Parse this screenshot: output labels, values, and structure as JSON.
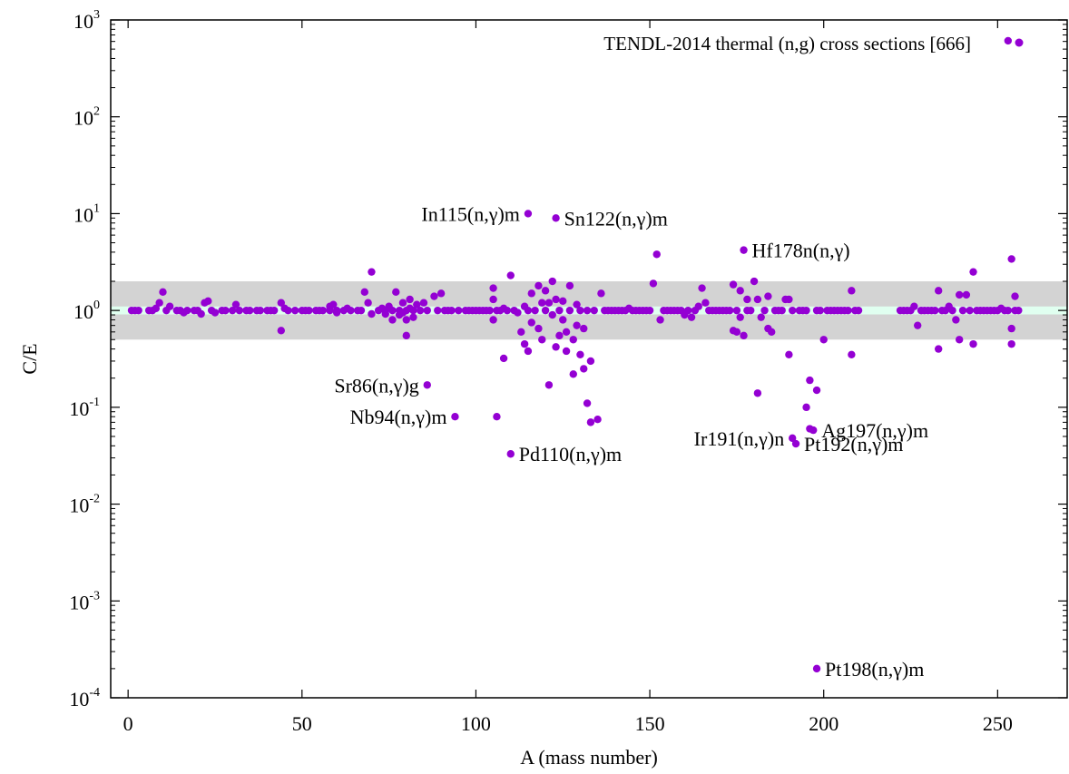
{
  "chart_data": {
    "type": "scatter",
    "title": "",
    "xlabel": "A (mass number)",
    "ylabel": "C/E",
    "xlim": [
      -5,
      270
    ],
    "ylim": [
      0.0001,
      1000
    ],
    "yscale": "log",
    "xticks": [
      0,
      50,
      100,
      150,
      200,
      250
    ],
    "yticks": [
      {
        "base": "10",
        "exp": "-4",
        "value": 0.0001
      },
      {
        "base": "10",
        "exp": "-3",
        "value": 0.001
      },
      {
        "base": "10",
        "exp": "-2",
        "value": 0.01
      },
      {
        "base": "10",
        "exp": "-1",
        "value": 0.1
      },
      {
        "base": "10",
        "exp": "0",
        "value": 1
      },
      {
        "base": "10",
        "exp": "1",
        "value": 10
      },
      {
        "base": "10",
        "exp": "2",
        "value": 100
      },
      {
        "base": "10",
        "exp": "3",
        "value": 1000
      }
    ],
    "bands": [
      {
        "ymin": 0.5,
        "ymax": 2.0,
        "color": "#d3d3d3"
      },
      {
        "ymin": 0.91,
        "ymax": 1.1,
        "color": "#e0fff0"
      }
    ],
    "grid": false,
    "legend_position": "top-right",
    "series": [
      {
        "name": "TENDL-2014 thermal (n,g) cross sections [666]",
        "color": "#9400d3",
        "points": [
          [
            1,
            1.0
          ],
          [
            2,
            1.0
          ],
          [
            3,
            1.0
          ],
          [
            6,
            1.0
          ],
          [
            7,
            1.0
          ],
          [
            8,
            1.05
          ],
          [
            9,
            1.2
          ],
          [
            10,
            1.55
          ],
          [
            11,
            1.0
          ],
          [
            12,
            1.1
          ],
          [
            14,
            1.0
          ],
          [
            15,
            1.0
          ],
          [
            16,
            0.95
          ],
          [
            17,
            1.0
          ],
          [
            19,
            1.0
          ],
          [
            20,
            1.0
          ],
          [
            21,
            0.92
          ],
          [
            22,
            1.2
          ],
          [
            23,
            1.25
          ],
          [
            24,
            1.0
          ],
          [
            25,
            0.95
          ],
          [
            27,
            1.0
          ],
          [
            28,
            1.0
          ],
          [
            30,
            1.0
          ],
          [
            31,
            1.15
          ],
          [
            32,
            1.0
          ],
          [
            34,
            1.0
          ],
          [
            35,
            1.0
          ],
          [
            37,
            1.0
          ],
          [
            38,
            1.0
          ],
          [
            40,
            1.0
          ],
          [
            41,
            1.0
          ],
          [
            42,
            1.0
          ],
          [
            44,
            1.2
          ],
          [
            44,
            0.62
          ],
          [
            45,
            1.05
          ],
          [
            46,
            1.0
          ],
          [
            48,
            1.0
          ],
          [
            50,
            1.0
          ],
          [
            51,
            1.0
          ],
          [
            52,
            1.0
          ],
          [
            54,
            1.0
          ],
          [
            55,
            1.0
          ],
          [
            56,
            1.0
          ],
          [
            58,
            1.0
          ],
          [
            58,
            1.1
          ],
          [
            59,
            1.15
          ],
          [
            60,
            0.95
          ],
          [
            60,
            1.0
          ],
          [
            62,
            1.0
          ],
          [
            63,
            1.05
          ],
          [
            64,
            1.0
          ],
          [
            66,
            1.0
          ],
          [
            67,
            1.0
          ],
          [
            68,
            1.55
          ],
          [
            69,
            1.2
          ],
          [
            70,
            2.5
          ],
          [
            70,
            0.92
          ],
          [
            72,
            1.0
          ],
          [
            73,
            1.05
          ],
          [
            74,
            1.0
          ],
          [
            74,
            0.92
          ],
          [
            75,
            1.1
          ],
          [
            76,
            1.0
          ],
          [
            76,
            0.8
          ],
          [
            77,
            1.55
          ],
          [
            78,
            1.0
          ],
          [
            78,
            0.9
          ],
          [
            79,
            1.2
          ],
          [
            79,
            0.95
          ],
          [
            80,
            1.0
          ],
          [
            80,
            0.8
          ],
          [
            80,
            0.55
          ],
          [
            81,
            1.3
          ],
          [
            81,
            1.05
          ],
          [
            82,
            1.0
          ],
          [
            82,
            0.85
          ],
          [
            83,
            1.15
          ],
          [
            84,
            1.0
          ],
          [
            85,
            1.2
          ],
          [
            86,
            1.0
          ],
          [
            86,
            0.17
          ],
          [
            88,
            1.4
          ],
          [
            89,
            1.0
          ],
          [
            90,
            1.5
          ],
          [
            91,
            1.0
          ],
          [
            92,
            1.0
          ],
          [
            93,
            1.0
          ],
          [
            94,
            0.08
          ],
          [
            95,
            1.0
          ],
          [
            97,
            1.0
          ],
          [
            98,
            1.0
          ],
          [
            99,
            1.0
          ],
          [
            100,
            1.0
          ],
          [
            101,
            1.0
          ],
          [
            102,
            1.0
          ],
          [
            103,
            1.0
          ],
          [
            104,
            1.0
          ],
          [
            105,
            1.7
          ],
          [
            105,
            1.3
          ],
          [
            105,
            0.8
          ],
          [
            106,
            1.0
          ],
          [
            106,
            0.08
          ],
          [
            107,
            1.0
          ],
          [
            108,
            0.32
          ],
          [
            108,
            1.05
          ],
          [
            109,
            1.0
          ],
          [
            110,
            2.3
          ],
          [
            110,
            0.033
          ],
          [
            111,
            1.0
          ],
          [
            112,
            0.95
          ],
          [
            113,
            0.6
          ],
          [
            114,
            1.1
          ],
          [
            114,
            0.45
          ],
          [
            115,
            10.0
          ],
          [
            115,
            1.0
          ],
          [
            115,
            0.38
          ],
          [
            116,
            1.5
          ],
          [
            116,
            0.75
          ],
          [
            117,
            1.0
          ],
          [
            118,
            1.8
          ],
          [
            118,
            0.65
          ],
          [
            119,
            1.2
          ],
          [
            119,
            0.5
          ],
          [
            120,
            1.6
          ],
          [
            120,
            1.0
          ],
          [
            121,
            0.17
          ],
          [
            121,
            1.2
          ],
          [
            122,
            2.0
          ],
          [
            122,
            0.9
          ],
          [
            123,
            9.0
          ],
          [
            123,
            1.3
          ],
          [
            123,
            0.42
          ],
          [
            124,
            1.0
          ],
          [
            124,
            0.55
          ],
          [
            125,
            1.25
          ],
          [
            125,
            0.8
          ],
          [
            126,
            0.6
          ],
          [
            126,
            0.38
          ],
          [
            127,
            1.8
          ],
          [
            127,
            1.0
          ],
          [
            128,
            0.5
          ],
          [
            128,
            0.22
          ],
          [
            129,
            1.15
          ],
          [
            129,
            0.7
          ],
          [
            130,
            1.0
          ],
          [
            130,
            0.35
          ],
          [
            131,
            0.65
          ],
          [
            131,
            0.25
          ],
          [
            132,
            1.0
          ],
          [
            132,
            0.11
          ],
          [
            133,
            0.3
          ],
          [
            133,
            0.07
          ],
          [
            134,
            1.0
          ],
          [
            135,
            0.075
          ],
          [
            136,
            1.5
          ],
          [
            137,
            1.0
          ],
          [
            138,
            1.0
          ],
          [
            139,
            1.0
          ],
          [
            140,
            1.0
          ],
          [
            141,
            1.0
          ],
          [
            142,
            1.0
          ],
          [
            143,
            1.0
          ],
          [
            144,
            1.05
          ],
          [
            145,
            1.0
          ],
          [
            146,
            1.0
          ],
          [
            147,
            1.0
          ],
          [
            148,
            1.0
          ],
          [
            149,
            1.0
          ],
          [
            150,
            1.0
          ],
          [
            151,
            1.9
          ],
          [
            152,
            3.8
          ],
          [
            153,
            0.8
          ],
          [
            154,
            1.0
          ],
          [
            155,
            1.0
          ],
          [
            156,
            1.0
          ],
          [
            157,
            1.0
          ],
          [
            158,
            1.0
          ],
          [
            159,
            1.0
          ],
          [
            160,
            0.9
          ],
          [
            161,
            1.0
          ],
          [
            162,
            0.85
          ],
          [
            163,
            1.0
          ],
          [
            164,
            1.1
          ],
          [
            165,
            1.7
          ],
          [
            166,
            1.2
          ],
          [
            167,
            1.0
          ],
          [
            168,
            1.0
          ],
          [
            169,
            1.0
          ],
          [
            170,
            1.0
          ],
          [
            171,
            1.0
          ],
          [
            172,
            1.0
          ],
          [
            173,
            1.0
          ],
          [
            174,
            1.85
          ],
          [
            174,
            0.62
          ],
          [
            175,
            1.0
          ],
          [
            175,
            0.6
          ],
          [
            176,
            1.6
          ],
          [
            176,
            0.85
          ],
          [
            177,
            4.2
          ],
          [
            177,
            0.55
          ],
          [
            178,
            1.3
          ],
          [
            178,
            1.0
          ],
          [
            179,
            1.0
          ],
          [
            180,
            2.0
          ],
          [
            181,
            0.14
          ],
          [
            181,
            1.3
          ],
          [
            182,
            0.85
          ],
          [
            183,
            1.0
          ],
          [
            184,
            1.4
          ],
          [
            184,
            0.65
          ],
          [
            185,
            0.6
          ],
          [
            186,
            1.0
          ],
          [
            187,
            1.0
          ],
          [
            188,
            1.0
          ],
          [
            189,
            1.3
          ],
          [
            190,
            0.35
          ],
          [
            190,
            1.3
          ],
          [
            191,
            0.048
          ],
          [
            191,
            1.0
          ],
          [
            192,
            0.042
          ],
          [
            193,
            1.0
          ],
          [
            194,
            1.0
          ],
          [
            195,
            0.1
          ],
          [
            195,
            1.0
          ],
          [
            196,
            0.19
          ],
          [
            196,
            0.06
          ],
          [
            197,
            0.058
          ],
          [
            198,
            0.0002
          ],
          [
            198,
            0.15
          ],
          [
            198,
            1.0
          ],
          [
            199,
            1.0
          ],
          [
            200,
            0.5
          ],
          [
            201,
            1.0
          ],
          [
            202,
            1.0
          ],
          [
            203,
            1.0
          ],
          [
            204,
            1.0
          ],
          [
            205,
            1.0
          ],
          [
            206,
            1.0
          ],
          [
            207,
            1.0
          ],
          [
            208,
            1.6
          ],
          [
            208,
            0.35
          ],
          [
            209,
            1.0
          ],
          [
            210,
            1.0
          ],
          [
            222,
            1.0
          ],
          [
            223,
            1.0
          ],
          [
            224,
            1.0
          ],
          [
            225,
            1.0
          ],
          [
            226,
            1.1
          ],
          [
            227,
            0.7
          ],
          [
            228,
            1.0
          ],
          [
            229,
            1.0
          ],
          [
            230,
            1.0
          ],
          [
            231,
            1.0
          ],
          [
            232,
            1.0
          ],
          [
            233,
            1.6
          ],
          [
            233,
            0.4
          ],
          [
            234,
            1.0
          ],
          [
            235,
            1.0
          ],
          [
            236,
            1.1
          ],
          [
            237,
            1.0
          ],
          [
            238,
            0.8
          ],
          [
            239,
            1.45
          ],
          [
            239,
            0.5
          ],
          [
            240,
            1.0
          ],
          [
            241,
            1.45
          ],
          [
            242,
            1.0
          ],
          [
            243,
            2.5
          ],
          [
            243,
            0.45
          ],
          [
            244,
            1.0
          ],
          [
            245,
            1.0
          ],
          [
            246,
            1.0
          ],
          [
            247,
            1.0
          ],
          [
            248,
            1.0
          ],
          [
            249,
            1.0
          ],
          [
            250,
            1.0
          ],
          [
            251,
            1.05
          ],
          [
            252,
            1.0
          ],
          [
            253,
            610
          ],
          [
            253,
            1.0
          ],
          [
            254,
            3.4
          ],
          [
            254,
            0.45
          ],
          [
            254,
            0.65
          ],
          [
            255,
            1.0
          ],
          [
            255,
            1.4
          ],
          [
            256,
            1.0
          ]
        ]
      }
    ],
    "annotations": [
      {
        "label": "In115(n,γ)m",
        "x": 115,
        "y": 10.0,
        "anchor": "end"
      },
      {
        "label": "Sn122(n,γ)m",
        "x": 123,
        "y": 9.0,
        "anchor": "start"
      },
      {
        "label": "Hf178n(n,γ)",
        "x": 177,
        "y": 4.2,
        "anchor": "start"
      },
      {
        "label": "Sr86(n,γ)g",
        "x": 86,
        "y": 0.17,
        "anchor": "end"
      },
      {
        "label": "Nb94(n,γ)m",
        "x": 94,
        "y": 0.08,
        "anchor": "end"
      },
      {
        "label": "Pd110(n,γ)m",
        "x": 110,
        "y": 0.033,
        "anchor": "start"
      },
      {
        "label": "Ir191(n,γ)n",
        "x": 191,
        "y": 0.048,
        "anchor": "end"
      },
      {
        "label": "Ag197(n,γ)m",
        "x": 197,
        "y": 0.058,
        "anchor": "start"
      },
      {
        "label": "Pt192(n,γ)m",
        "x": 192,
        "y": 0.042,
        "anchor": "start"
      },
      {
        "label": "Pt198(n,γ)m",
        "x": 198,
        "y": 0.0002,
        "anchor": "start"
      }
    ]
  }
}
